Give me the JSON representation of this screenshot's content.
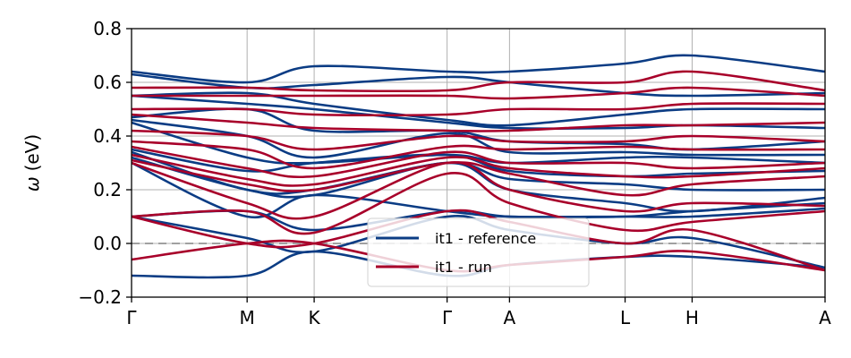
{
  "chart_data": {
    "type": "line",
    "title": "",
    "xlabel": "",
    "ylabel": "ω (eV)",
    "ylabel_symbol": "ω",
    "ylabel_unit": "(eV)",
    "ylim": [
      -0.2,
      0.8
    ],
    "yticks": [
      {
        "value": -0.2,
        "label": "−0.2"
      },
      {
        "value": 0.0,
        "label": "0.0"
      },
      {
        "value": 0.2,
        "label": "0.2"
      },
      {
        "value": 0.4,
        "label": "0.4"
      },
      {
        "value": 0.6,
        "label": "0.6"
      },
      {
        "value": 0.8,
        "label": "0.8"
      }
    ],
    "xlim": [
      0,
      6
    ],
    "xticks": [
      {
        "value": 0.0,
        "label": "Γ"
      },
      {
        "value": 1.0,
        "label": "M"
      },
      {
        "value": 1.58,
        "label": "K"
      },
      {
        "value": 2.73,
        "label": "Γ"
      },
      {
        "value": 3.27,
        "label": "A"
      },
      {
        "value": 4.27,
        "label": "L"
      },
      {
        "value": 4.85,
        "label": "H"
      },
      {
        "value": 6.0,
        "label": "A"
      }
    ],
    "grid": true,
    "zero_line": true,
    "legend": {
      "placement": "lower-center",
      "entries": [
        {
          "label": "it1 - reference",
          "color": "#0b3c84"
        },
        {
          "label": "it1 - run",
          "color": "#a8002a"
        }
      ]
    },
    "series": [
      {
        "name": "it1 - reference",
        "color": "#0b3c84",
        "x": [
          0,
          1.0,
          1.58,
          2.73,
          3.27,
          4.27,
          4.85,
          6.0
        ],
        "bands": [
          [
            -0.12,
            -0.12,
            -0.03,
            -0.12,
            -0.08,
            -0.05,
            -0.05,
            -0.09
          ],
          [
            0.1,
            0.02,
            -0.03,
            0.1,
            0.05,
            0.0,
            0.02,
            -0.09
          ],
          [
            0.1,
            0.12,
            0.05,
            0.12,
            0.1,
            0.1,
            0.1,
            0.13
          ],
          [
            0.3,
            0.1,
            0.18,
            0.12,
            0.1,
            0.1,
            0.12,
            0.15
          ],
          [
            0.32,
            0.2,
            0.18,
            0.3,
            0.2,
            0.15,
            0.12,
            0.17
          ],
          [
            0.34,
            0.2,
            0.2,
            0.3,
            0.24,
            0.22,
            0.2,
            0.2
          ],
          [
            0.35,
            0.27,
            0.3,
            0.33,
            0.27,
            0.25,
            0.26,
            0.27
          ],
          [
            0.45,
            0.32,
            0.3,
            0.33,
            0.3,
            0.32,
            0.32,
            0.3
          ],
          [
            0.46,
            0.4,
            0.32,
            0.41,
            0.34,
            0.34,
            0.33,
            0.33
          ],
          [
            0.47,
            0.5,
            0.42,
            0.42,
            0.38,
            0.37,
            0.35,
            0.38
          ],
          [
            0.55,
            0.52,
            0.5,
            0.45,
            0.43,
            0.43,
            0.44,
            0.43
          ],
          [
            0.55,
            0.56,
            0.52,
            0.46,
            0.44,
            0.48,
            0.5,
            0.5
          ],
          [
            0.63,
            0.58,
            0.59,
            0.62,
            0.6,
            0.56,
            0.55,
            0.56
          ],
          [
            0.64,
            0.6,
            0.66,
            0.64,
            0.64,
            0.67,
            0.7,
            0.64
          ]
        ]
      },
      {
        "name": "it1 - run",
        "color": "#a8002a",
        "x": [
          0,
          1.0,
          1.58,
          2.73,
          3.27,
          4.27,
          4.85,
          6.0
        ],
        "bands": [
          [
            -0.06,
            0.0,
            0.0,
            -0.1,
            -0.08,
            -0.05,
            -0.03,
            -0.1
          ],
          [
            0.1,
            0.0,
            0.0,
            0.12,
            0.08,
            0.0,
            0.05,
            -0.1
          ],
          [
            0.1,
            0.12,
            0.04,
            0.26,
            0.15,
            0.05,
            0.08,
            0.12
          ],
          [
            0.3,
            0.15,
            0.1,
            0.3,
            0.2,
            0.12,
            0.15,
            0.14
          ],
          [
            0.31,
            0.22,
            0.2,
            0.3,
            0.26,
            0.18,
            0.22,
            0.25
          ],
          [
            0.33,
            0.24,
            0.22,
            0.32,
            0.28,
            0.25,
            0.25,
            0.28
          ],
          [
            0.36,
            0.28,
            0.25,
            0.34,
            0.3,
            0.3,
            0.28,
            0.3
          ],
          [
            0.38,
            0.35,
            0.28,
            0.36,
            0.35,
            0.36,
            0.35,
            0.35
          ],
          [
            0.42,
            0.4,
            0.35,
            0.4,
            0.38,
            0.38,
            0.4,
            0.38
          ],
          [
            0.48,
            0.45,
            0.43,
            0.42,
            0.42,
            0.44,
            0.44,
            0.45
          ],
          [
            0.5,
            0.5,
            0.48,
            0.48,
            0.5,
            0.5,
            0.52,
            0.52
          ],
          [
            0.55,
            0.55,
            0.55,
            0.55,
            0.54,
            0.56,
            0.58,
            0.55
          ],
          [
            0.58,
            0.58,
            0.57,
            0.57,
            0.6,
            0.6,
            0.64,
            0.57
          ]
        ]
      }
    ]
  }
}
